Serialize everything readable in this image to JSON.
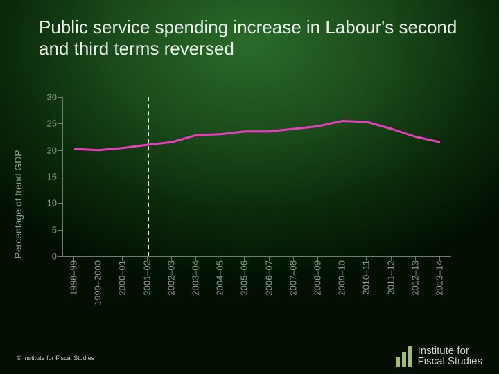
{
  "title": "Public service spending increase in Labour's second and third terms reversed",
  "chart": {
    "type": "line",
    "ylabel": "Percentage of trend GDP",
    "ylim": [
      0,
      30
    ],
    "ytick_step": 5,
    "yticks": [
      0,
      5,
      10,
      15,
      20,
      25,
      30
    ],
    "categories": [
      "1998–99",
      "1999–2000",
      "2000–01",
      "2001–02",
      "2002–03",
      "2003–04",
      "2004–05",
      "2005–06",
      "2006–07",
      "2007–08",
      "2008–09",
      "2009–10",
      "2010–11",
      "2011–12",
      "2012–13",
      "2013–14"
    ],
    "values": [
      20.2,
      20.0,
      20.4,
      21.0,
      21.5,
      22.8,
      23.0,
      23.5,
      23.5,
      24.0,
      24.5,
      25.5,
      25.3,
      24.0,
      22.5,
      21.5
    ],
    "line_color": "#e83fbe",
    "line_width": 3,
    "axis_color": "#6a806a",
    "tick_label_color": "#88a088",
    "tick_fontsize": 13,
    "ylabel_fontsize": 14,
    "reference_line_index": 3,
    "reference_line_style": "dashed",
    "reference_line_color": "#e8f0e8",
    "background": "radial-gradient green to black"
  },
  "footer": {
    "copyright": "© Institute for Fiscal Studies",
    "logo_text_line1": "Institute for",
    "logo_text_line2": "Fiscal Studies",
    "logo_bar_color": "#a7b96a",
    "logo_bar_heights": [
      14,
      22,
      30
    ]
  },
  "title_fontsize": 26,
  "title_color": "#e8f0e8"
}
